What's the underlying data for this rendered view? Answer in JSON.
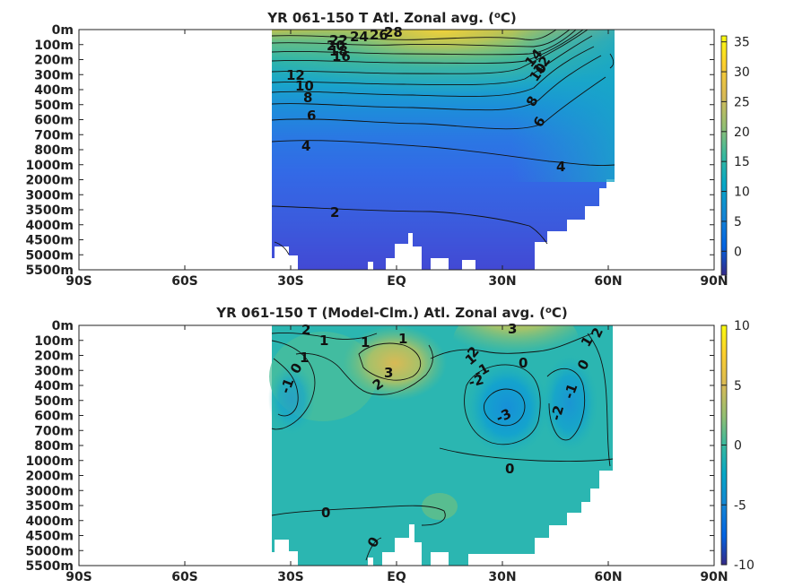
{
  "chart_data": [
    {
      "type": "heatmap",
      "title": "YR 061-150 T Atl. Zonal avg. (°C)",
      "title_main": "YR 061-150 T Atl. Zonal avg. (",
      "title_sup": "o",
      "title_end": "C)",
      "xticks": [
        "90S",
        "60S",
        "30S",
        "EQ",
        "30N",
        "60N",
        "90N"
      ],
      "yticks": [
        "0m",
        "100m",
        "200m",
        "300m",
        "400m",
        "500m",
        "600m",
        "700m",
        "800m",
        "1000m",
        "2000m",
        "3000m",
        "3500m",
        "4000m",
        "4500m",
        "5000m",
        "5500m"
      ],
      "colorbar_ticks": [
        "35",
        "30",
        "25",
        "20",
        "15",
        "10",
        "5",
        "0"
      ],
      "colorbar_range": [
        -4,
        36
      ],
      "contour_labels": [
        "28",
        "26",
        "24",
        "22",
        "20",
        "18",
        "16",
        "12",
        "10",
        "8",
        "6",
        "4",
        "2",
        "14",
        "12",
        "10",
        "8",
        "6",
        "4"
      ],
      "colormap": "parula",
      "data_extent_lat": [
        -35,
        63
      ]
    },
    {
      "type": "heatmap",
      "title": "YR 061-150 T (Model-Clm.) Atl. Zonal avg. (°C)",
      "title_main": "YR 061-150 T (Model-Clm.) Atl. Zonal avg. (",
      "title_sup": "o",
      "title_end": "C)",
      "xticks": [
        "90S",
        "60S",
        "30S",
        "EQ",
        "30N",
        "60N",
        "90N"
      ],
      "yticks": [
        "0m",
        "100m",
        "200m",
        "300m",
        "400m",
        "500m",
        "600m",
        "700m",
        "800m",
        "1000m",
        "2000m",
        "3000m",
        "3500m",
        "4000m",
        "4500m",
        "5000m",
        "5500m"
      ],
      "colorbar_ticks": [
        "10",
        "5",
        "0",
        "-5",
        "-10"
      ],
      "colorbar_range": [
        -10,
        10
      ],
      "contour_labels": [
        "2",
        "1",
        "1",
        "1",
        "1",
        "0",
        "-1",
        "3",
        "2",
        "3",
        "2",
        "1",
        "-1",
        "-2",
        "0",
        "-3",
        "1",
        "0",
        "-1",
        "-2",
        "2",
        "0",
        "0",
        "0"
      ],
      "colormap": "parula",
      "data_extent_lat": [
        -35,
        63
      ]
    }
  ]
}
